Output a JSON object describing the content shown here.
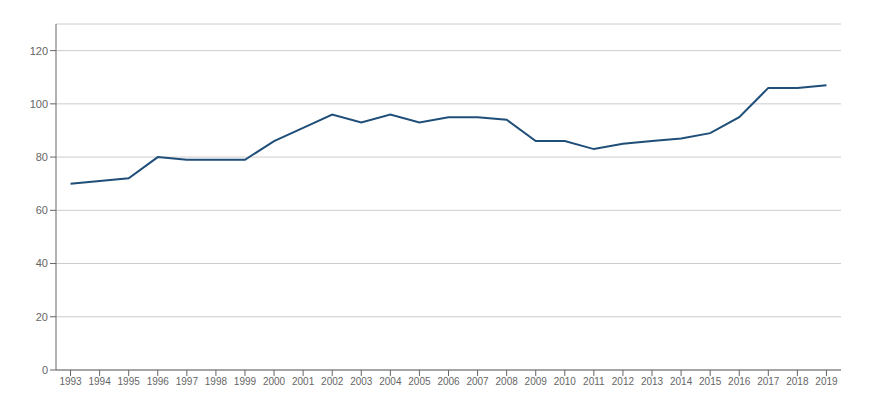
{
  "chart_data": {
    "type": "line",
    "x": [
      1993,
      1994,
      1995,
      1996,
      1997,
      1998,
      1999,
      2000,
      2001,
      2002,
      2003,
      2004,
      2005,
      2006,
      2007,
      2008,
      2009,
      2010,
      2011,
      2012,
      2013,
      2014,
      2015,
      2016,
      2017,
      2018,
      2019
    ],
    "values": [
      70,
      71,
      72,
      80,
      79,
      79,
      79,
      86,
      91,
      96,
      93,
      96,
      93,
      95,
      95,
      94,
      86,
      86,
      83,
      85,
      86,
      87,
      89,
      95,
      106,
      106,
      107
    ],
    "color": "#1f4e79",
    "xlim": [
      1992.5,
      2019.5
    ],
    "xticks": [
      1993,
      1994,
      1995,
      1996,
      1997,
      1998,
      1999,
      2000,
      2001,
      2002,
      2003,
      2004,
      2005,
      2006,
      2007,
      2008,
      2009,
      2010,
      2011,
      2012,
      2013,
      2014,
      2015,
      2016,
      2017,
      2018,
      2019
    ],
    "ylim": [
      0,
      130
    ],
    "yticks": [
      0,
      20,
      40,
      60,
      80,
      100,
      120
    ],
    "grid": true
  }
}
